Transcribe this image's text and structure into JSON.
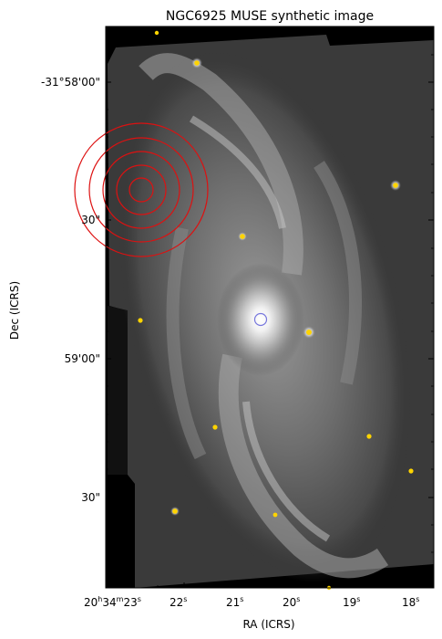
{
  "figure": {
    "title": "NGC6925 MUSE synthetic image",
    "xlabel": "RA (ICRS)",
    "ylabel": "Dec (ICRS)",
    "x_ticks": [
      {
        "h": "20",
        "m": "34",
        "s": "23"
      },
      {
        "s": "22"
      },
      {
        "s": "21"
      },
      {
        "s": "20"
      },
      {
        "s": "19"
      },
      {
        "s": "18"
      }
    ],
    "y_ticks": [
      "-31°58'00\"",
      "30\"",
      "59'00\"",
      "30\""
    ],
    "colors": {
      "background": "#000000",
      "markers_yellow": "#ffd400",
      "rings_red": "#dd1111",
      "center_marker": "#7777dd"
    }
  },
  "image": {
    "object": "NGC6925",
    "colormap": "gray",
    "overlays": [
      {
        "type": "yellow-point-sources",
        "count": 14
      },
      {
        "type": "concentric-red-circles",
        "count": 5
      },
      {
        "type": "blue-circle-nucleus",
        "count": 1
      }
    ]
  }
}
